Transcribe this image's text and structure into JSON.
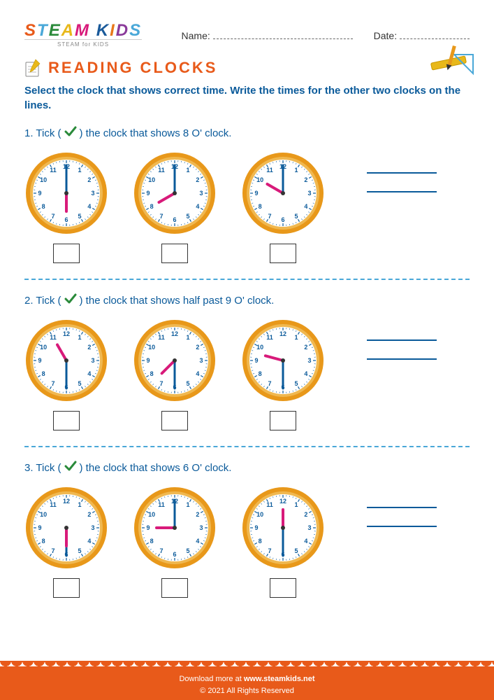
{
  "header": {
    "logo_main_letters": [
      "S",
      "T",
      "E",
      "A",
      "M",
      " ",
      "K",
      "I",
      "D",
      "S"
    ],
    "logo_sub": "STEAM for KIDS",
    "name_label": "Name:",
    "date_label": "Date:"
  },
  "title": "READING CLOCKS",
  "instructions": "Select the clock that shows correct time. Write the times for the other two clocks on the lines.",
  "tick_word": "Tick",
  "questions": [
    {
      "num": "1.",
      "text_before": " the clock that shows ",
      "text_after": "8 O' clock.",
      "clocks": [
        {
          "hour_angle": 180,
          "minute_angle": 0
        },
        {
          "hour_angle": 240,
          "minute_angle": 0
        },
        {
          "hour_angle": 300,
          "minute_angle": 0
        }
      ]
    },
    {
      "num": "2.",
      "text_before": " the clock that shows ",
      "text_after": "half past 9 O' clock.",
      "clocks": [
        {
          "hour_angle": 330,
          "minute_angle": 180
        },
        {
          "hour_angle": 225,
          "minute_angle": 180
        },
        {
          "hour_angle": 285,
          "minute_angle": 180
        }
      ]
    },
    {
      "num": "3.",
      "text_before": " the clock that shows ",
      "text_after": "6 O' clock.",
      "clocks": [
        {
          "hour_angle": 180,
          "minute_angle": 180
        },
        {
          "hour_angle": 270,
          "minute_angle": 0
        },
        {
          "hour_angle": 0,
          "minute_angle": 180
        }
      ]
    }
  ],
  "clock_style": {
    "rim_color": "#e8981a",
    "rim_inner": "#f0b850",
    "face_color": "#ffffff",
    "number_color": "#0a5a9a",
    "tick_color": "#0a5a9a",
    "hour_hand_color": "#d81a7a",
    "minute_hand_color": "#0a5a9a",
    "center_color": "#333333",
    "number_fontsize": 9
  },
  "check_color": "#2a8a3a",
  "footer": {
    "line1_a": "Download more at ",
    "line1_b": "www.steamkids.net",
    "line2": "© 2021 All Rights Reserved"
  }
}
